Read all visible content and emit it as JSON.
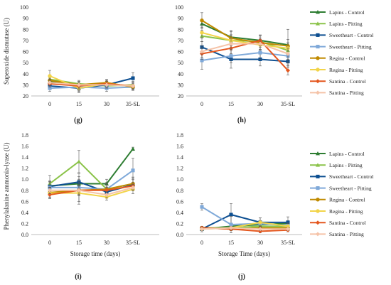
{
  "legend": [
    {
      "name": "Lapins - Control",
      "color": "#2e7d32",
      "marker": "triangle"
    },
    {
      "name": "Lapins - Pitting",
      "color": "#8bc34a",
      "marker": "triangle"
    },
    {
      "name": "Sweetheart - Control",
      "color": "#0d4f91",
      "marker": "square"
    },
    {
      "name": "Sweetheart - Pitting",
      "color": "#7fa9d9",
      "marker": "square"
    },
    {
      "name": "Regina - Control",
      "color": "#c08a00",
      "marker": "circle"
    },
    {
      "name": "Regina - Pitting",
      "color": "#f2d44a",
      "marker": "circle"
    },
    {
      "name": "Santina - Control",
      "color": "#e4571e",
      "marker": "diamond"
    },
    {
      "name": "Santina - Pitting",
      "color": "#f5c3a8",
      "marker": "diamond"
    }
  ],
  "chart_data": [
    {
      "type": "line",
      "letter": "(g)",
      "ylabel": "Superoxide dismutase (U)",
      "xlabel": "",
      "categories": [
        "0",
        "15",
        "30",
        "35-SL"
      ],
      "ylim": [
        20,
        100
      ],
      "yticks": [
        "20",
        "30",
        "40",
        "50",
        "60",
        "70",
        "80",
        "90",
        "100"
      ],
      "series": [
        {
          "values": [
            33,
            30,
            30,
            29
          ],
          "err": [
            3,
            3,
            3,
            3
          ]
        },
        {
          "values": [
            35,
            31,
            29,
            30
          ],
          "err": [
            3,
            3,
            3,
            3
          ]
        },
        {
          "values": [
            29,
            27,
            30,
            36
          ],
          "err": [
            3,
            3,
            3,
            5
          ]
        },
        {
          "values": [
            27,
            28,
            27,
            28
          ],
          "err": [
            3,
            3,
            3,
            3
          ]
        },
        {
          "values": [
            34,
            30,
            32,
            28
          ],
          "err": [
            3,
            3,
            3,
            3
          ]
        },
        {
          "values": [
            38,
            27,
            31,
            29
          ],
          "err": [
            5,
            4,
            3,
            3
          ]
        },
        {
          "values": [
            31,
            29,
            31,
            29
          ],
          "err": [
            3,
            3,
            3,
            3
          ]
        },
        {
          "values": [
            32,
            30,
            30,
            29
          ],
          "err": [
            3,
            3,
            3,
            3
          ]
        }
      ]
    },
    {
      "type": "line",
      "letter": "(h)",
      "ylabel": "",
      "xlabel": "",
      "categories": [
        "0",
        "15",
        "30",
        "35-SL"
      ],
      "ylim": [
        20,
        100
      ],
      "yticks": [
        "20",
        "30",
        "40",
        "50",
        "60",
        "70",
        "80",
        "90",
        "100"
      ],
      "series": [
        {
          "values": [
            85,
            73,
            70,
            66
          ],
          "err": [
            4,
            5,
            4,
            5
          ]
        },
        {
          "values": [
            74,
            70,
            69,
            61
          ],
          "err": [
            5,
            5,
            5,
            5
          ]
        },
        {
          "values": [
            64,
            53,
            53,
            51
          ],
          "err": [
            5,
            8,
            6,
            5
          ]
        },
        {
          "values": [
            52,
            56,
            59,
            56
          ],
          "err": [
            8,
            6,
            6,
            8
          ]
        },
        {
          "values": [
            88,
            72,
            68,
            65
          ],
          "err": [
            7,
            7,
            6,
            15
          ]
        },
        {
          "values": [
            77,
            70,
            66,
            63
          ],
          "err": [
            5,
            5,
            5,
            5
          ]
        },
        {
          "values": [
            58,
            63,
            70,
            43
          ],
          "err": [
            5,
            5,
            5,
            4
          ]
        },
        {
          "values": [
            60,
            67,
            67,
            58
          ],
          "err": [
            5,
            5,
            5,
            5
          ]
        }
      ]
    },
    {
      "type": "line",
      "letter": "(i)",
      "ylabel": "Phenylalanine ammonia-lyase (U)",
      "xlabel": "Storage time (days)",
      "categories": [
        "0",
        "15",
        "30",
        "35-SL"
      ],
      "ylim": [
        0,
        1.8
      ],
      "yticks": [
        "0.0",
        "0.2",
        "0.4",
        "0.6",
        "0.8",
        "1.0",
        "1.2",
        "1.4",
        "1.6",
        "1.8"
      ],
      "series": [
        {
          "values": [
            0.88,
            0.92,
            0.92,
            1.55
          ],
          "err": [
            0.08,
            0.08,
            0.08,
            0.03
          ]
        },
        {
          "values": [
            0.92,
            1.32,
            0.82,
            0.92
          ],
          "err": [
            0.15,
            0.2,
            0.12,
            0.1
          ]
        },
        {
          "values": [
            0.87,
            0.95,
            0.77,
            0.9
          ],
          "err": [
            0.1,
            0.1,
            0.08,
            0.1
          ]
        },
        {
          "values": [
            0.85,
            0.85,
            0.82,
            1.16
          ],
          "err": [
            0.1,
            0.25,
            0.1,
            0.22
          ]
        },
        {
          "values": [
            0.76,
            0.8,
            0.82,
            0.92
          ],
          "err": [
            0.08,
            0.1,
            0.08,
            0.12
          ]
        },
        {
          "values": [
            0.75,
            0.75,
            0.68,
            0.82
          ],
          "err": [
            0.1,
            0.2,
            0.06,
            0.08
          ]
        },
        {
          "values": [
            0.72,
            0.8,
            0.8,
            0.88
          ],
          "err": [
            0.06,
            0.08,
            0.06,
            0.06
          ]
        },
        {
          "values": [
            0.8,
            0.8,
            0.72,
            0.85
          ],
          "err": [
            0.06,
            0.08,
            0.06,
            0.06
          ]
        }
      ]
    },
    {
      "type": "line",
      "letter": "(j)",
      "ylabel": "",
      "xlabel": "Storage Time (days)",
      "categories": [
        "0",
        "15",
        "30",
        "35-SL"
      ],
      "ylim": [
        0,
        1.8
      ],
      "yticks": [
        "0.0",
        "0.2",
        "0.4",
        "0.6",
        "0.8",
        "1.0",
        "1.2",
        "1.4",
        "1.6",
        "1.8"
      ],
      "series": [
        {
          "values": [
            0.1,
            0.15,
            0.18,
            0.2
          ],
          "err": [
            0.03,
            0.03,
            0.05,
            0.05
          ]
        },
        {
          "values": [
            0.12,
            0.12,
            0.15,
            0.15
          ],
          "err": [
            0.03,
            0.03,
            0.05,
            0.05
          ]
        },
        {
          "values": [
            0.1,
            0.36,
            0.22,
            0.22
          ],
          "err": [
            0.05,
            0.2,
            0.08,
            0.1
          ]
        },
        {
          "values": [
            0.5,
            0.18,
            0.2,
            0.16
          ],
          "err": [
            0.06,
            0.15,
            0.05,
            0.05
          ]
        },
        {
          "values": [
            0.12,
            0.1,
            0.12,
            0.12
          ],
          "err": [
            0.03,
            0.03,
            0.03,
            0.03
          ]
        },
        {
          "values": [
            0.1,
            0.12,
            0.22,
            0.15
          ],
          "err": [
            0.03,
            0.03,
            0.08,
            0.05
          ]
        },
        {
          "values": [
            0.12,
            0.1,
            0.06,
            0.08
          ],
          "err": [
            0.03,
            0.03,
            0.03,
            0.03
          ]
        },
        {
          "values": [
            0.1,
            0.12,
            0.1,
            0.1
          ],
          "err": [
            0.03,
            0.03,
            0.03,
            0.03
          ]
        }
      ]
    }
  ]
}
